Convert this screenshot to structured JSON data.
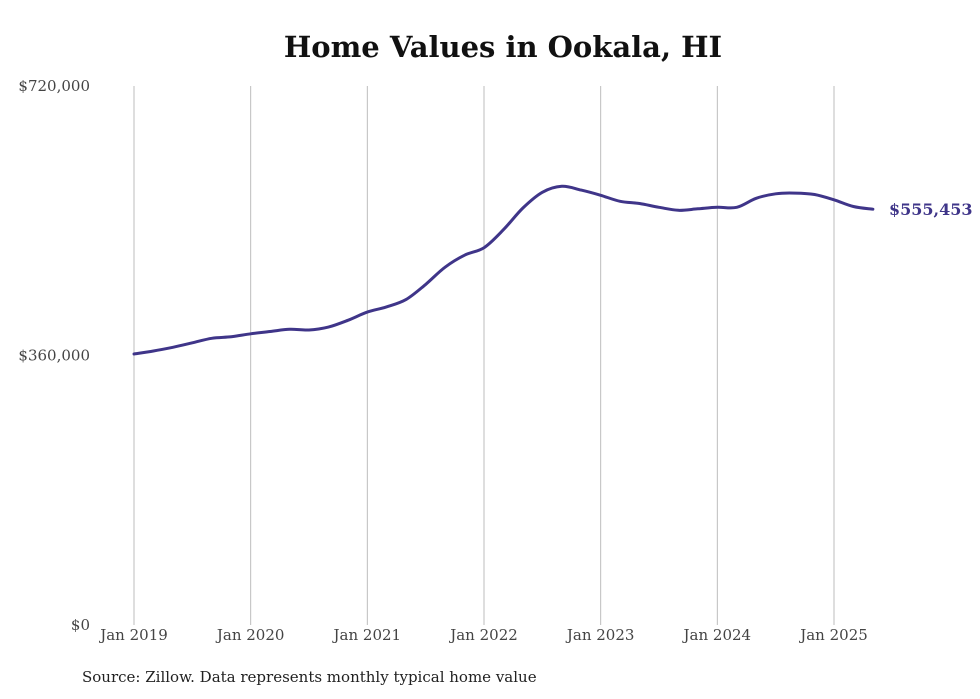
{
  "chart_data": {
    "type": "line",
    "title": "Home Values in Ookala, HI",
    "source": "Source: Zillow. Data represents monthly typical home value",
    "x_tick_labels": [
      "Jan 2019",
      "Jan 2020",
      "Jan 2021",
      "Jan 2022",
      "Jan 2023",
      "Jan 2024",
      "Jan 2025"
    ],
    "x_tick_years": [
      2019,
      2020,
      2021,
      2022,
      2023,
      2024,
      2025
    ],
    "y_tick_labels": [
      "$0",
      "$360,000",
      "$720,000"
    ],
    "y_tick_values": [
      0,
      360000,
      720000
    ],
    "ylim": [
      0,
      720000
    ],
    "xlim": [
      "2019-01",
      "2025-05"
    ],
    "grid": "vertical",
    "line_color": "#3f3589",
    "end_label": "$555,453",
    "series": [
      {
        "points": [
          [
            "2019-01",
            362000
          ],
          [
            "2019-03",
            366000
          ],
          [
            "2019-05",
            371000
          ],
          [
            "2019-07",
            377000
          ],
          [
            "2019-09",
            383000
          ],
          [
            "2019-11",
            385000
          ],
          [
            "2020-01",
            389000
          ],
          [
            "2020-03",
            392000
          ],
          [
            "2020-05",
            395000
          ],
          [
            "2020-07",
            394000
          ],
          [
            "2020-09",
            398000
          ],
          [
            "2020-11",
            407000
          ],
          [
            "2021-01",
            418000
          ],
          [
            "2021-03",
            425000
          ],
          [
            "2021-05",
            435000
          ],
          [
            "2021-07",
            455000
          ],
          [
            "2021-09",
            478000
          ],
          [
            "2021-11",
            494000
          ],
          [
            "2022-01",
            504000
          ],
          [
            "2022-03",
            528000
          ],
          [
            "2022-05",
            557000
          ],
          [
            "2022-07",
            578000
          ],
          [
            "2022-09",
            586000
          ],
          [
            "2022-11",
            581000
          ],
          [
            "2023-01",
            574000
          ],
          [
            "2023-03",
            566000
          ],
          [
            "2023-05",
            563000
          ],
          [
            "2023-07",
            558000
          ],
          [
            "2023-09",
            554000
          ],
          [
            "2023-11",
            556000
          ],
          [
            "2024-01",
            558000
          ],
          [
            "2024-03",
            558000
          ],
          [
            "2024-05",
            570000
          ],
          [
            "2024-07",
            576000
          ],
          [
            "2024-09",
            577000
          ],
          [
            "2024-11",
            575000
          ],
          [
            "2025-01",
            568000
          ],
          [
            "2025-03",
            559000
          ],
          [
            "2025-05",
            555453
          ]
        ]
      }
    ]
  }
}
